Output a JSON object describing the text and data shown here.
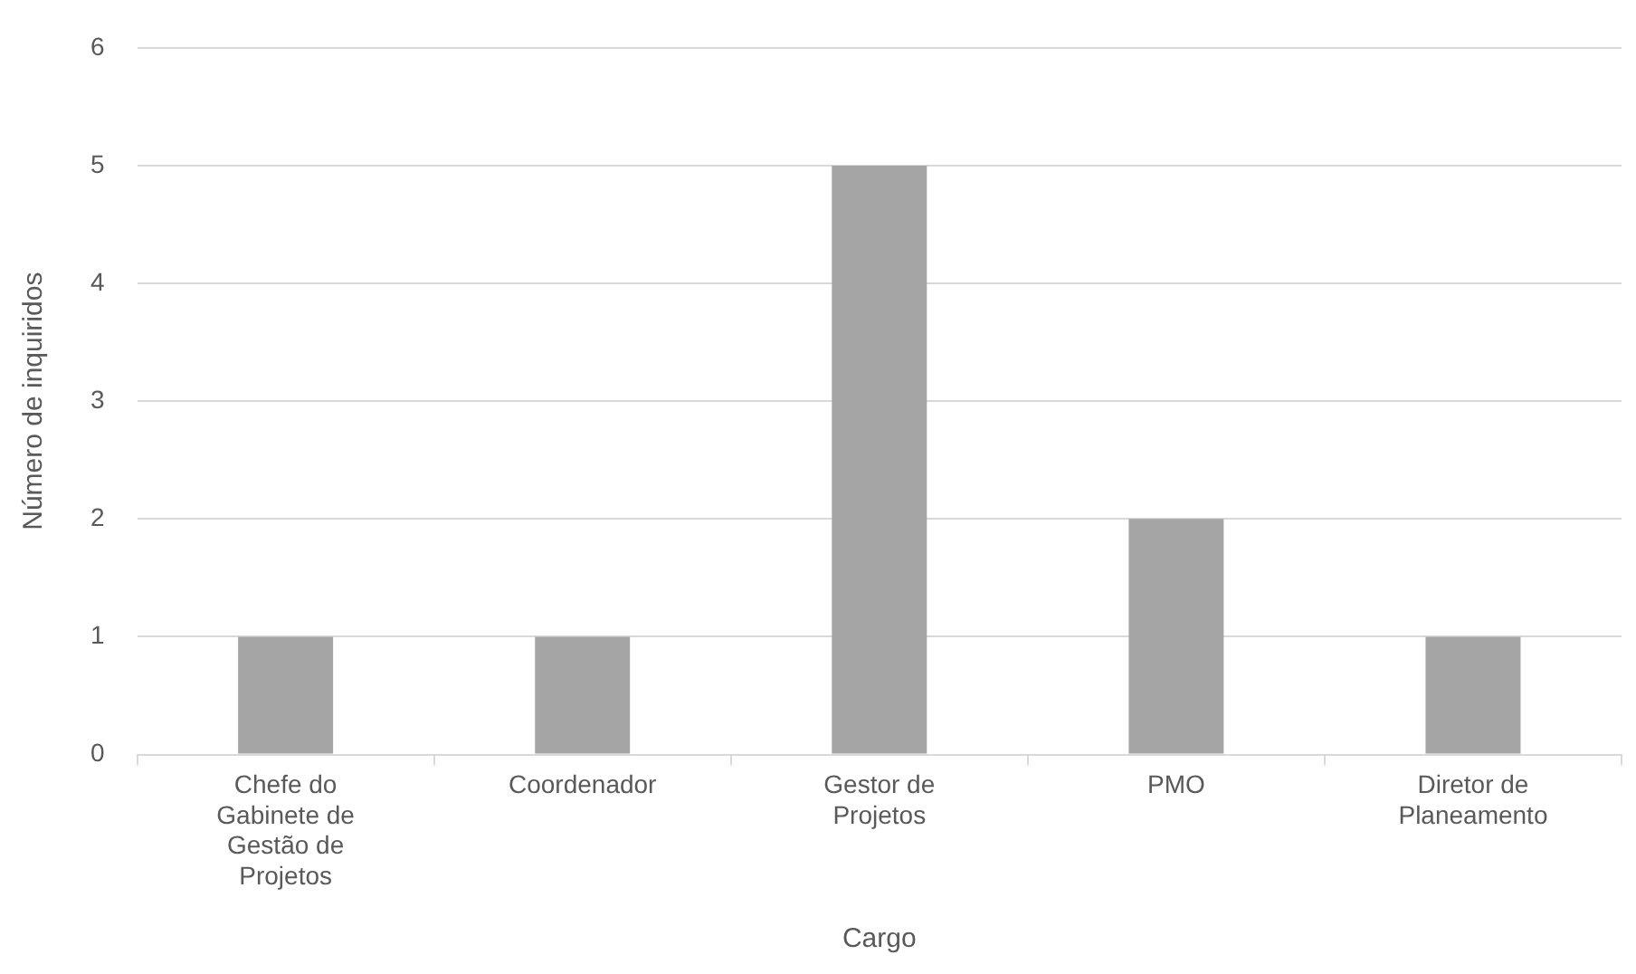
{
  "chart_data": {
    "type": "bar",
    "xlabel": "Cargo",
    "ylabel": "Número de inquiridos",
    "categories": [
      "Chefe do Gabinete de Gestão de Projetos",
      "Coordenador",
      "Gestor de Projetos",
      "PMO",
      "Diretor de Planeamento"
    ],
    "values": [
      1,
      1,
      5,
      2,
      1
    ],
    "color": "#a5a5a5",
    "ylim": [
      0,
      6
    ],
    "yticks": [
      0,
      1,
      2,
      3,
      4,
      5,
      6
    ],
    "grid": "y",
    "legend": false
  }
}
